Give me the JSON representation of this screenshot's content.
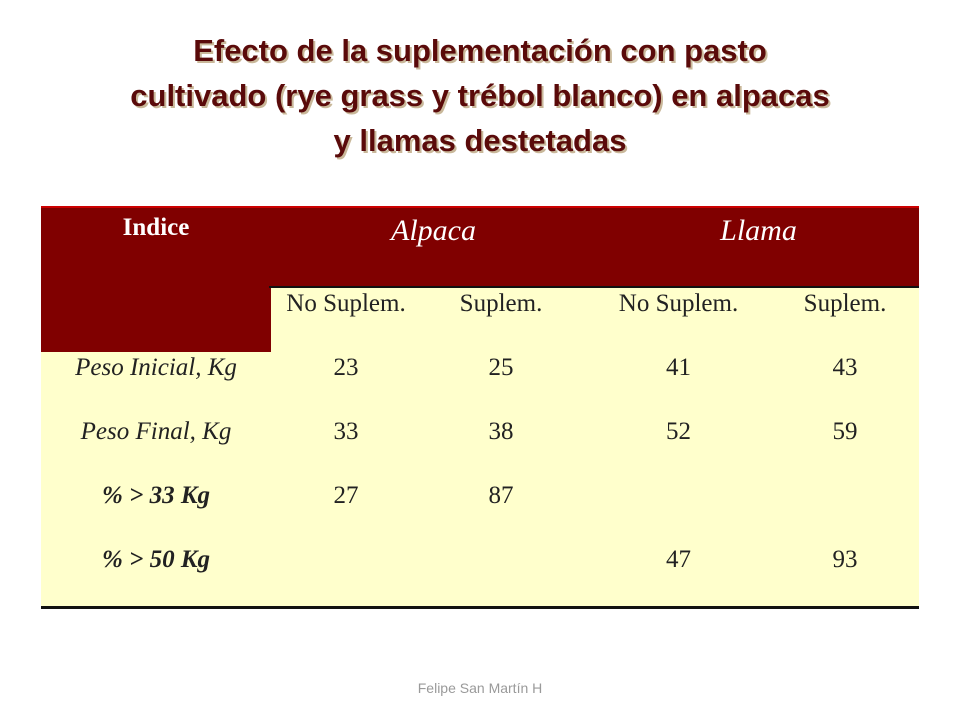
{
  "title": {
    "line1": "Efecto de la suplementación con pasto",
    "line2": "cultivado (rye grass y trébol blanco) en alpacas",
    "line3": "y llamas destetadas"
  },
  "table": {
    "indice_label": "Indice",
    "groups": [
      "Alpaca",
      "Llama"
    ],
    "subheaders": [
      "No Suplem.",
      "Suplem.",
      "No Suplem.",
      "Suplem."
    ],
    "rows": [
      {
        "label": "Peso Inicial, Kg",
        "values": [
          "23",
          "25",
          "41",
          "43"
        ]
      },
      {
        "label": "Peso Final, Kg",
        "values": [
          "33",
          "38",
          "52",
          "59"
        ]
      },
      {
        "label": "% > 33 Kg",
        "values": [
          "27",
          "87",
          "",
          ""
        ]
      },
      {
        "label": "% > 50 Kg",
        "values": [
          "",
          "",
          "47",
          "93"
        ]
      }
    ]
  },
  "footer": "Felipe San Martín H",
  "colors": {
    "header_bg": "#800000",
    "table_bg": "#ffffcc",
    "title": "#5a0a0a"
  }
}
